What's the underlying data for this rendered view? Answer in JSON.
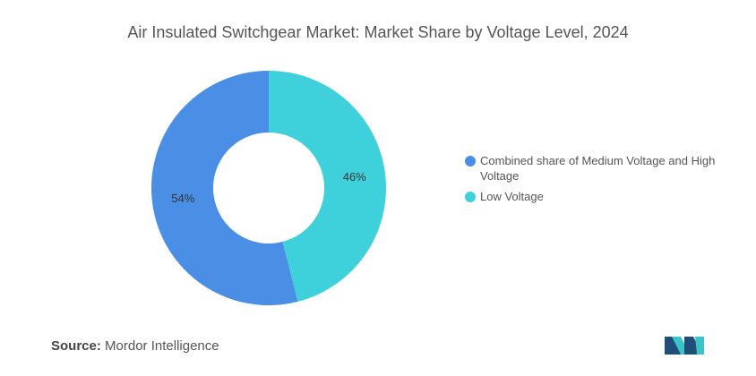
{
  "chart_data": {
    "type": "pie",
    "title": "Air Insulated Switchgear Market: Market Share by Voltage Level, 2024",
    "categories": [
      "Combined share of Medium Voltage and High Voltage",
      "Low Voltage"
    ],
    "values": [
      54,
      46
    ],
    "value_labels": [
      "54%",
      "46%"
    ],
    "colors": [
      "#4a8ee6",
      "#3fd1db"
    ],
    "donut": true,
    "legend_position": "right"
  },
  "source": {
    "label": "Source:",
    "text": "Mordor Intelligence"
  },
  "logo": {
    "icon": "mordor-intelligence-logo",
    "colors": [
      "#1f4e79",
      "#3cc3c8"
    ]
  }
}
